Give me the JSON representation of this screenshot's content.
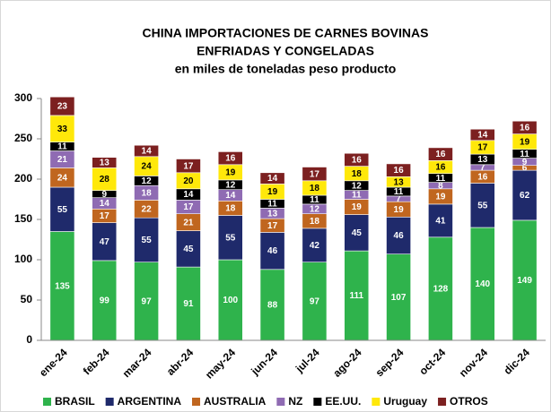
{
  "chart_data": {
    "type": "stacked_bar",
    "title": [
      "CHINA IMPORTACIONES DE CARNES BOVINAS",
      "ENFRIADAS  Y CONGELADAS"
    ],
    "subtitle": "en miles de toneladas peso producto",
    "categories": [
      "ene-24",
      "feb-24",
      "mar-24",
      "abr-24",
      "may-24",
      "jun-24",
      "jul-24",
      "ago-24",
      "sep-24",
      "oct-24",
      "nov-24",
      "dic-24"
    ],
    "series": [
      {
        "name": "BRASIL",
        "color": "#2fb34c",
        "values": [
          135,
          99,
          97,
          91,
          100,
          88,
          97,
          111,
          107,
          128,
          140,
          149
        ]
      },
      {
        "name": "ARGENTINA",
        "color": "#1f2a6b",
        "values": [
          55,
          47,
          55,
          45,
          55,
          46,
          42,
          45,
          46,
          41,
          55,
          62
        ]
      },
      {
        "name": "AUSTRALIA",
        "color": "#c0661f",
        "values": [
          24,
          17,
          22,
          21,
          18,
          17,
          18,
          19,
          19,
          19,
          16,
          6
        ]
      },
      {
        "name": "NZ",
        "color": "#8f6bb3",
        "values": [
          21,
          14,
          18,
          17,
          14,
          13,
          12,
          11,
          7,
          8,
          7,
          9
        ]
      },
      {
        "name": "EE.UU.",
        "color": "#000000",
        "values": [
          11,
          9,
          12,
          14,
          12,
          11,
          11,
          12,
          11,
          11,
          13,
          11
        ]
      },
      {
        "name": "Uruguay",
        "color": "#ffe80a",
        "values": [
          33,
          28,
          24,
          20,
          19,
          19,
          18,
          18,
          13,
          16,
          17,
          19
        ]
      },
      {
        "name": "OTROS",
        "color": "#7c2020",
        "values": [
          23,
          13,
          14,
          17,
          16,
          14,
          17,
          16,
          16,
          16,
          14,
          16
        ]
      }
    ],
    "ylim": [
      0,
      300
    ],
    "yticks": [
      0,
      50,
      100,
      150,
      200,
      250,
      300
    ],
    "grid": false
  }
}
